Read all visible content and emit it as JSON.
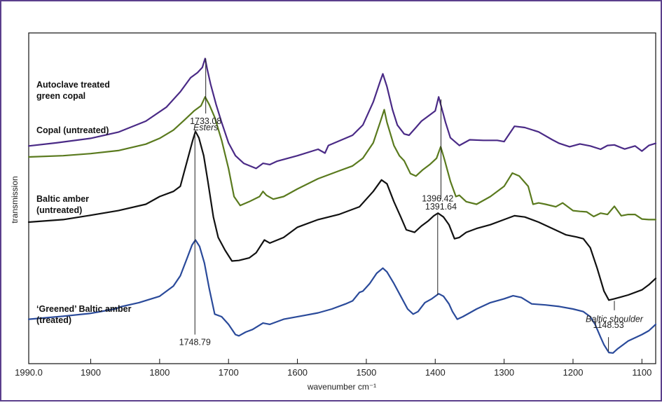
{
  "colors": {
    "border": "#5b3f8c",
    "purple": "#4a2a86",
    "green": "#5a7a1e",
    "black": "#111111",
    "blue": "#2a4a9a"
  },
  "chart_data": {
    "type": "line",
    "title": "",
    "xlabel": "wavenumber cm⁻¹",
    "ylabel": "transmission",
    "xlim": [
      1990,
      1080
    ],
    "x_reversed": true,
    "grid": false,
    "x_ticks": [
      1990,
      1900,
      1800,
      1700,
      1600,
      1500,
      1400,
      1300,
      1200,
      1100
    ],
    "x_tick_labels": [
      "1990.0",
      "1900",
      "1800",
      "1700",
      "1600",
      "1500",
      "1400",
      "1300",
      "1200",
      "1100"
    ],
    "series": [
      {
        "name": "Autoclave treated green copal",
        "label_lines": [
          "Autoclave treated",
          "green copal"
        ],
        "color": "purple",
        "points": [
          [
            1990,
            0.838
          ],
          [
            1950,
            0.85
          ],
          [
            1900,
            0.868
          ],
          [
            1860,
            0.892
          ],
          [
            1820,
            0.935
          ],
          [
            1790,
            0.99
          ],
          [
            1770,
            1.05
          ],
          [
            1755,
            1.105
          ],
          [
            1745,
            1.125
          ],
          [
            1738,
            1.145
          ],
          [
            1734,
            1.18
          ],
          [
            1731,
            1.14
          ],
          [
            1726,
            1.08
          ],
          [
            1718,
            1.0
          ],
          [
            1710,
            0.93
          ],
          [
            1700,
            0.85
          ],
          [
            1690,
            0.8
          ],
          [
            1678,
            0.77
          ],
          [
            1660,
            0.75
          ],
          [
            1650,
            0.77
          ],
          [
            1640,
            0.765
          ],
          [
            1630,
            0.778
          ],
          [
            1600,
            0.8
          ],
          [
            1570,
            0.825
          ],
          [
            1560,
            0.81
          ],
          [
            1555,
            0.84
          ],
          [
            1520,
            0.88
          ],
          [
            1505,
            0.92
          ],
          [
            1490,
            1.01
          ],
          [
            1480,
            1.09
          ],
          [
            1476,
            1.12
          ],
          [
            1470,
            1.07
          ],
          [
            1462,
            0.98
          ],
          [
            1455,
            0.92
          ],
          [
            1445,
            0.885
          ],
          [
            1438,
            0.88
          ],
          [
            1428,
            0.91
          ],
          [
            1420,
            0.935
          ],
          [
            1410,
            0.955
          ],
          [
            1400,
            0.975
          ],
          [
            1395,
            1.03
          ],
          [
            1390,
            0.98
          ],
          [
            1385,
            0.93
          ],
          [
            1378,
            0.87
          ],
          [
            1365,
            0.84
          ],
          [
            1350,
            0.862
          ],
          [
            1330,
            0.86
          ],
          [
            1310,
            0.86
          ],
          [
            1300,
            0.855
          ],
          [
            1285,
            0.915
          ],
          [
            1270,
            0.91
          ],
          [
            1250,
            0.893
          ],
          [
            1230,
            0.862
          ],
          [
            1220,
            0.848
          ],
          [
            1205,
            0.835
          ],
          [
            1190,
            0.846
          ],
          [
            1175,
            0.838
          ],
          [
            1160,
            0.825
          ],
          [
            1150,
            0.84
          ],
          [
            1140,
            0.842
          ],
          [
            1125,
            0.826
          ],
          [
            1110,
            0.838
          ],
          [
            1100,
            0.818
          ],
          [
            1090,
            0.84
          ],
          [
            1080,
            0.848
          ]
        ]
      },
      {
        "name": "Copal (untreated)",
        "label_lines": [
          "Copal (untreated)"
        ],
        "color": "green",
        "points": [
          [
            1990,
            0.795
          ],
          [
            1940,
            0.8
          ],
          [
            1900,
            0.808
          ],
          [
            1860,
            0.82
          ],
          [
            1820,
            0.845
          ],
          [
            1800,
            0.868
          ],
          [
            1780,
            0.9
          ],
          [
            1765,
            0.937
          ],
          [
            1750,
            0.975
          ],
          [
            1740,
            0.995
          ],
          [
            1734,
            1.03
          ],
          [
            1728,
            1.0
          ],
          [
            1720,
            0.95
          ],
          [
            1710,
            0.86
          ],
          [
            1700,
            0.75
          ],
          [
            1692,
            0.64
          ],
          [
            1683,
            0.605
          ],
          [
            1670,
            0.62
          ],
          [
            1655,
            0.64
          ],
          [
            1650,
            0.66
          ],
          [
            1645,
            0.645
          ],
          [
            1635,
            0.63
          ],
          [
            1620,
            0.64
          ],
          [
            1600,
            0.67
          ],
          [
            1570,
            0.71
          ],
          [
            1540,
            0.74
          ],
          [
            1520,
            0.76
          ],
          [
            1505,
            0.79
          ],
          [
            1490,
            0.85
          ],
          [
            1480,
            0.93
          ],
          [
            1474,
            0.98
          ],
          [
            1470,
            0.93
          ],
          [
            1460,
            0.84
          ],
          [
            1452,
            0.8
          ],
          [
            1445,
            0.78
          ],
          [
            1436,
            0.73
          ],
          [
            1428,
            0.72
          ],
          [
            1418,
            0.745
          ],
          [
            1408,
            0.765
          ],
          [
            1398,
            0.79
          ],
          [
            1392,
            0.835
          ],
          [
            1386,
            0.78
          ],
          [
            1378,
            0.7
          ],
          [
            1370,
            0.64
          ],
          [
            1365,
            0.645
          ],
          [
            1355,
            0.62
          ],
          [
            1340,
            0.61
          ],
          [
            1320,
            0.64
          ],
          [
            1300,
            0.68
          ],
          [
            1288,
            0.732
          ],
          [
            1278,
            0.72
          ],
          [
            1265,
            0.68
          ],
          [
            1258,
            0.61
          ],
          [
            1250,
            0.615
          ],
          [
            1240,
            0.61
          ],
          [
            1225,
            0.6
          ],
          [
            1215,
            0.615
          ],
          [
            1200,
            0.585
          ],
          [
            1190,
            0.582
          ],
          [
            1180,
            0.58
          ],
          [
            1170,
            0.562
          ],
          [
            1160,
            0.575
          ],
          [
            1150,
            0.57
          ],
          [
            1140,
            0.602
          ],
          [
            1130,
            0.565
          ],
          [
            1120,
            0.57
          ],
          [
            1110,
            0.57
          ],
          [
            1100,
            0.552
          ],
          [
            1090,
            0.55
          ],
          [
            1080,
            0.55
          ]
        ]
      },
      {
        "name": "Baltic amber (untreated)",
        "label_lines": [
          "Baltic amber",
          "(untreated)"
        ],
        "color": "black",
        "points": [
          [
            1990,
            0.54
          ],
          [
            1940,
            0.55
          ],
          [
            1900,
            0.567
          ],
          [
            1860,
            0.585
          ],
          [
            1820,
            0.61
          ],
          [
            1800,
            0.64
          ],
          [
            1780,
            0.66
          ],
          [
            1770,
            0.68
          ],
          [
            1765,
            0.73
          ],
          [
            1758,
            0.8
          ],
          [
            1752,
            0.86
          ],
          [
            1748,
            0.895
          ],
          [
            1743,
            0.87
          ],
          [
            1736,
            0.8
          ],
          [
            1730,
            0.7
          ],
          [
            1722,
            0.56
          ],
          [
            1715,
            0.48
          ],
          [
            1705,
            0.43
          ],
          [
            1695,
            0.388
          ],
          [
            1685,
            0.39
          ],
          [
            1670,
            0.4
          ],
          [
            1660,
            0.42
          ],
          [
            1648,
            0.47
          ],
          [
            1640,
            0.458
          ],
          [
            1620,
            0.48
          ],
          [
            1600,
            0.52
          ],
          [
            1570,
            0.55
          ],
          [
            1540,
            0.57
          ],
          [
            1510,
            0.6
          ],
          [
            1490,
            0.66
          ],
          [
            1478,
            0.705
          ],
          [
            1470,
            0.69
          ],
          [
            1460,
            0.62
          ],
          [
            1450,
            0.56
          ],
          [
            1442,
            0.51
          ],
          [
            1430,
            0.5
          ],
          [
            1420,
            0.525
          ],
          [
            1410,
            0.545
          ],
          [
            1402,
            0.565
          ],
          [
            1396,
            0.575
          ],
          [
            1388,
            0.56
          ],
          [
            1380,
            0.53
          ],
          [
            1372,
            0.475
          ],
          [
            1365,
            0.48
          ],
          [
            1355,
            0.5
          ],
          [
            1340,
            0.515
          ],
          [
            1320,
            0.53
          ],
          [
            1300,
            0.55
          ],
          [
            1285,
            0.565
          ],
          [
            1270,
            0.56
          ],
          [
            1250,
            0.54
          ],
          [
            1230,
            0.515
          ],
          [
            1210,
            0.49
          ],
          [
            1195,
            0.482
          ],
          [
            1185,
            0.475
          ],
          [
            1175,
            0.44
          ],
          [
            1165,
            0.36
          ],
          [
            1155,
            0.27
          ],
          [
            1148,
            0.235
          ],
          [
            1140,
            0.24
          ],
          [
            1120,
            0.255
          ],
          [
            1100,
            0.275
          ],
          [
            1090,
            0.295
          ],
          [
            1080,
            0.32
          ]
        ]
      },
      {
        "name": "‘Greened’ Baltic amber (treated)",
        "label_lines": [
          "‘Greened’ Baltic amber",
          "(treated)"
        ],
        "color": "blue",
        "points": [
          [
            1990,
            0.16
          ],
          [
            1940,
            0.172
          ],
          [
            1900,
            0.183
          ],
          [
            1865,
            0.2
          ],
          [
            1855,
            0.21
          ],
          [
            1830,
            0.225
          ],
          [
            1800,
            0.25
          ],
          [
            1780,
            0.29
          ],
          [
            1770,
            0.33
          ],
          [
            1760,
            0.4
          ],
          [
            1753,
            0.45
          ],
          [
            1748,
            0.47
          ],
          [
            1742,
            0.445
          ],
          [
            1735,
            0.38
          ],
          [
            1728,
            0.28
          ],
          [
            1720,
            0.18
          ],
          [
            1710,
            0.17
          ],
          [
            1700,
            0.14
          ],
          [
            1690,
            0.1
          ],
          [
            1685,
            0.095
          ],
          [
            1675,
            0.11
          ],
          [
            1665,
            0.12
          ],
          [
            1650,
            0.145
          ],
          [
            1640,
            0.14
          ],
          [
            1620,
            0.16
          ],
          [
            1590,
            0.175
          ],
          [
            1570,
            0.185
          ],
          [
            1550,
            0.2
          ],
          [
            1530,
            0.22
          ],
          [
            1520,
            0.232
          ],
          [
            1510,
            0.265
          ],
          [
            1505,
            0.27
          ],
          [
            1495,
            0.3
          ],
          [
            1485,
            0.34
          ],
          [
            1476,
            0.36
          ],
          [
            1470,
            0.345
          ],
          [
            1460,
            0.3
          ],
          [
            1450,
            0.25
          ],
          [
            1440,
            0.2
          ],
          [
            1432,
            0.18
          ],
          [
            1425,
            0.19
          ],
          [
            1415,
            0.225
          ],
          [
            1405,
            0.24
          ],
          [
            1395,
            0.26
          ],
          [
            1388,
            0.25
          ],
          [
            1380,
            0.22
          ],
          [
            1375,
            0.19
          ],
          [
            1368,
            0.16
          ],
          [
            1360,
            0.17
          ],
          [
            1350,
            0.185
          ],
          [
            1340,
            0.2
          ],
          [
            1320,
            0.225
          ],
          [
            1300,
            0.24
          ],
          [
            1287,
            0.252
          ],
          [
            1275,
            0.245
          ],
          [
            1260,
            0.22
          ],
          [
            1240,
            0.216
          ],
          [
            1220,
            0.21
          ],
          [
            1200,
            0.2
          ],
          [
            1185,
            0.19
          ],
          [
            1175,
            0.17
          ],
          [
            1168,
            0.14
          ],
          [
            1160,
            0.09
          ],
          [
            1155,
            0.06
          ],
          [
            1148,
            0.03
          ],
          [
            1142,
            0.028
          ],
          [
            1135,
            0.045
          ],
          [
            1120,
            0.075
          ],
          [
            1100,
            0.1
          ],
          [
            1090,
            0.115
          ],
          [
            1080,
            0.14
          ]
        ]
      }
    ],
    "annotations": [
      {
        "text": "1733.08",
        "x": 1733.08,
        "top_y": 1.18,
        "bottom_y": 0.965,
        "label_y": 0.935,
        "side": "below"
      },
      {
        "text": "Esters",
        "x": 1733.08,
        "label_y": 0.883,
        "italic": true,
        "line": false
      },
      {
        "text": "1391.64",
        "x": 1391.64,
        "top_y": 1.02,
        "bottom_y": 0.63,
        "label_y": 0.6,
        "side": "below"
      },
      {
        "text": "1396.42",
        "x": 1396.42,
        "top_y": 0.575,
        "bottom_y": 0.255,
        "label_y": 0.605,
        "side": "above"
      },
      {
        "text": "1748.79",
        "x": 1748.79,
        "top_y": 0.895,
        "bottom_y": 0.1,
        "label_y": 0.07,
        "side": "below"
      },
      {
        "text": "Baltic shoulder",
        "x": 1140,
        "top_y": 0.232,
        "bottom_y": 0.195,
        "label_y": 0.16,
        "italic": true,
        "side": "below"
      },
      {
        "text": "1148.53",
        "x": 1148.53,
        "top_y": 0.09,
        "bottom_y": 0.035,
        "label_y": 0.11,
        "side": "above"
      }
    ]
  }
}
